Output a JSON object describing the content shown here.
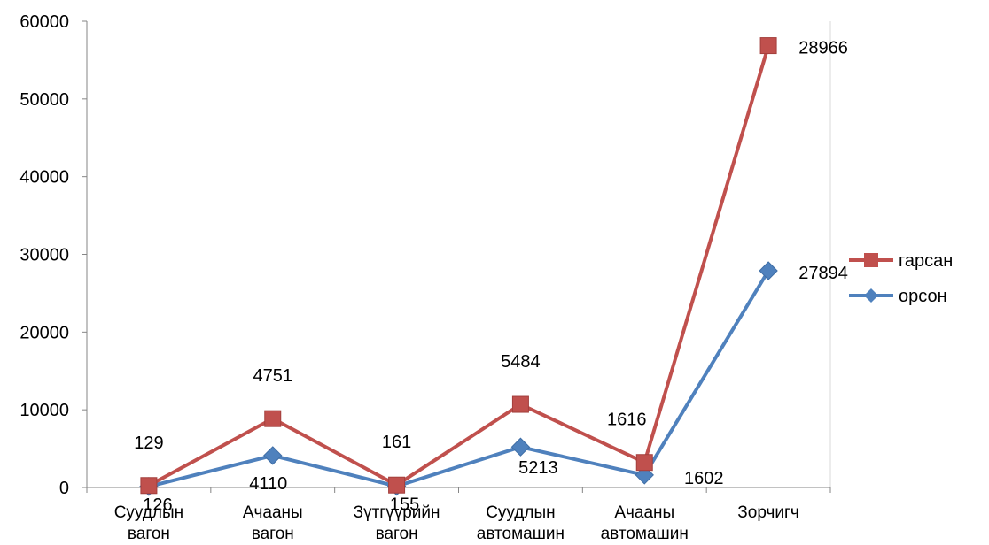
{
  "colors": {
    "garsan": "#C0504D",
    "orson": "#4F81BD",
    "axis": "#868686",
    "background": "#ffffff"
  },
  "chart_data": {
    "type": "line",
    "categories": [
      [
        "Суудлын",
        "вагон"
      ],
      [
        "Ачааны",
        "вагон"
      ],
      [
        "Зүтгүүрийн",
        "вагон"
      ],
      [
        "Суудлын",
        "автомашин"
      ],
      [
        "Ачааны",
        "автомашин"
      ],
      [
        "Зорчигч"
      ]
    ],
    "series": [
      {
        "name": "гарсан",
        "marker": "square",
        "color": "#C0504D",
        "values": [
          255,
          8861,
          316,
          10697,
          3218,
          56860
        ],
        "labels": [
          "129",
          "4751",
          "161",
          "5484",
          "1616",
          "28966"
        ]
      },
      {
        "name": "орсон",
        "marker": "diamond",
        "color": "#4F81BD",
        "values": [
          126,
          4110,
          155,
          5213,
          1602,
          27894
        ],
        "labels": [
          "126",
          "4110",
          "155",
          "5213",
          "1602",
          "27894"
        ]
      }
    ],
    "ylim": [
      0,
      60000
    ],
    "yticks": [
      "0",
      "10000",
      "20000",
      "30000",
      "40000",
      "50000",
      "60000"
    ],
    "ytick_values": [
      0,
      10000,
      20000,
      30000,
      40000,
      50000,
      60000
    ],
    "grid": false,
    "legend": "right",
    "title": "",
    "xlabel": "",
    "ylabel": ""
  }
}
